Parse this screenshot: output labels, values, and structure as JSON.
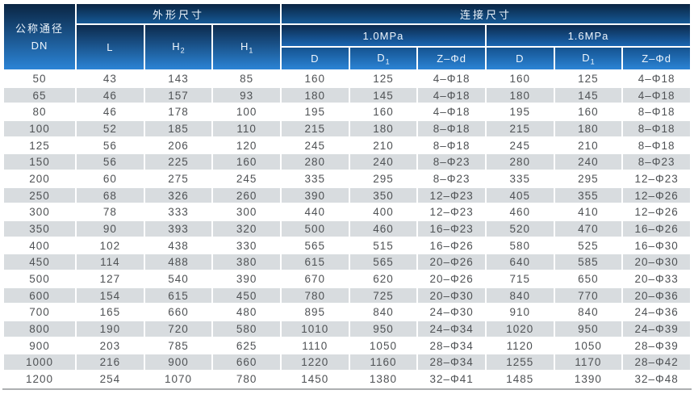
{
  "colors": {
    "header_gradient_top": "#0a2543",
    "header_gradient_bottom": "#2b84d6",
    "row_alt": "#d8dcdf",
    "data_text": "#4f5255",
    "bottom_rule": "#adb0b2"
  },
  "header": {
    "dn_title": "公称通径",
    "dn_code": "DN",
    "outline_group": "外形尺寸",
    "connection_group": "连接尺寸",
    "pressure_groups": [
      "1.0MPa",
      "1.6MPa"
    ],
    "cols": {
      "l": {
        "base": "L",
        "sub": ""
      },
      "h2": {
        "base": "H",
        "sub": "2"
      },
      "h1": {
        "base": "H",
        "sub": "1"
      },
      "d": {
        "base": "D",
        "sub": ""
      },
      "d1": {
        "base": "D",
        "sub": "1"
      },
      "zd": {
        "base": "Z–Φd",
        "sub": ""
      }
    }
  },
  "rows": [
    [
      "50",
      "43",
      "143",
      "85",
      "160",
      "125",
      "4–Φ18",
      "160",
      "125",
      "4–Φ18"
    ],
    [
      "65",
      "46",
      "157",
      "93",
      "180",
      "145",
      "4–Φ18",
      "180",
      "145",
      "4–Φ18"
    ],
    [
      "80",
      "46",
      "178",
      "100",
      "195",
      "160",
      "4–Φ18",
      "195",
      "160",
      "8–Φ18"
    ],
    [
      "100",
      "52",
      "185",
      "110",
      "215",
      "180",
      "8–Φ18",
      "215",
      "180",
      "8–Φ18"
    ],
    [
      "125",
      "56",
      "206",
      "120",
      "245",
      "210",
      "8–Φ18",
      "245",
      "210",
      "8–Φ18"
    ],
    [
      "150",
      "56",
      "225",
      "160",
      "280",
      "240",
      "8–Φ23",
      "280",
      "240",
      "8–Φ23"
    ],
    [
      "200",
      "60",
      "275",
      "245",
      "335",
      "295",
      "8–Φ23",
      "335",
      "295",
      "12–Φ23"
    ],
    [
      "250",
      "68",
      "326",
      "260",
      "390",
      "350",
      "12–Φ23",
      "405",
      "355",
      "12–Φ26"
    ],
    [
      "300",
      "78",
      "333",
      "300",
      "440",
      "400",
      "12–Φ23",
      "460",
      "410",
      "12–Φ26"
    ],
    [
      "350",
      "90",
      "393",
      "320",
      "500",
      "460",
      "16–Φ23",
      "520",
      "470",
      "16–Φ26"
    ],
    [
      "400",
      "102",
      "438",
      "330",
      "565",
      "515",
      "16–Φ26",
      "580",
      "525",
      "16–Φ30"
    ],
    [
      "450",
      "114",
      "488",
      "380",
      "615",
      "565",
      "20–Φ26",
      "640",
      "585",
      "20–Φ30"
    ],
    [
      "500",
      "127",
      "540",
      "390",
      "670",
      "620",
      "20–Φ26",
      "715",
      "650",
      "20–Φ33"
    ],
    [
      "600",
      "154",
      "615",
      "450",
      "780",
      "725",
      "20–Φ30",
      "840",
      "770",
      "20–Φ36"
    ],
    [
      "700",
      "165",
      "660",
      "480",
      "895",
      "840",
      "24–Φ30",
      "910",
      "840",
      "24–Φ36"
    ],
    [
      "800",
      "190",
      "720",
      "580",
      "1010",
      "950",
      "24–Φ34",
      "1020",
      "950",
      "24–Φ39"
    ],
    [
      "900",
      "203",
      "785",
      "625",
      "1110",
      "1050",
      "28–Φ34",
      "1120",
      "1050",
      "28–Φ39"
    ],
    [
      "1000",
      "216",
      "900",
      "660",
      "1220",
      "1160",
      "28–Φ34",
      "1255",
      "1170",
      "28–Φ42"
    ],
    [
      "1200",
      "254",
      "1070",
      "780",
      "1450",
      "1380",
      "32–Φ41",
      "1485",
      "1390",
      "32–Φ48"
    ]
  ]
}
